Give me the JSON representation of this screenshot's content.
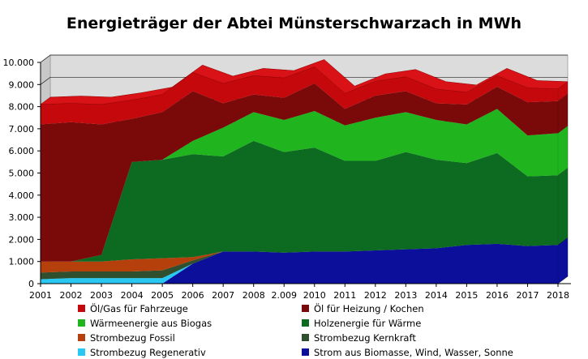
{
  "chart_data": {
    "type": "area",
    "title": "Energieträger der Abtei Münsterschwarzach in MWh",
    "categories": [
      "2001",
      "2002",
      "2003",
      "2004",
      "2005",
      "2006",
      "2007",
      "2008",
      "2.009",
      "2010",
      "2011",
      "2012",
      "2013",
      "2014",
      "2015",
      "2016",
      "2017",
      "2018"
    ],
    "yticks": [
      "0",
      "1.000",
      "2.000",
      "3.000",
      "4.000",
      "5.000",
      "6.000",
      "7.000",
      "8.000",
      "9.000",
      "10.000"
    ],
    "ylim": [
      0,
      10000
    ],
    "series": [
      {
        "name": "Strom aus Biomasse, Wind, Wasser, Sonne",
        "color": "#0b0f9a",
        "values": [
          0,
          0,
          0,
          0,
          0,
          900,
          1450,
          1450,
          1400,
          1450,
          1450,
          1500,
          1550,
          1600,
          1750,
          1800,
          1700,
          1750
        ]
      },
      {
        "name": "Strombezug Regenerativ",
        "color": "#29c8f2",
        "values": [
          200,
          250,
          250,
          250,
          250,
          0,
          0,
          0,
          0,
          0,
          0,
          0,
          0,
          0,
          0,
          0,
          0,
          0
        ]
      },
      {
        "name": "Strombezug Kernkraft",
        "color": "#2f4f2f",
        "values": [
          300,
          300,
          300,
          300,
          350,
          150,
          0,
          0,
          0,
          0,
          0,
          0,
          0,
          0,
          0,
          0,
          0,
          0
        ]
      },
      {
        "name": "Strombezug Fossil",
        "color": "#b5400c",
        "values": [
          500,
          450,
          450,
          550,
          550,
          150,
          0,
          0,
          0,
          0,
          0,
          0,
          0,
          0,
          0,
          0,
          0,
          0
        ]
      },
      {
        "name": "Holzenergie für Wärme",
        "color": "#0d6b21",
        "values": [
          0,
          0,
          300,
          4400,
          4450,
          4650,
          4300,
          5000,
          4550,
          4700,
          4100,
          4050,
          4400,
          4000,
          3700,
          4100,
          3150,
          3150
        ]
      },
      {
        "name": "Wärmeenergie aus Biogas",
        "color": "#20b51f",
        "values": [
          0,
          0,
          0,
          0,
          0,
          600,
          1300,
          1300,
          1450,
          1650,
          1600,
          1950,
          1800,
          1800,
          1750,
          2000,
          1850,
          1900
        ]
      },
      {
        "name": "Öl für Heizung / Kochen",
        "color": "#7a0a0a",
        "values": [
          6200,
          6300,
          5900,
          1950,
          2150,
          2250,
          1100,
          800,
          1000,
          1250,
          750,
          1000,
          950,
          750,
          900,
          1000,
          1500,
          1450
        ]
      },
      {
        "name": "Öl/Gas für Fahrzeuge",
        "color": "#c4080c",
        "values": [
          900,
          850,
          900,
          850,
          800,
          850,
          900,
          850,
          900,
          750,
          700,
          650,
          650,
          650,
          550,
          500,
          650,
          550
        ]
      }
    ],
    "legend": {
      "placement": "bottom",
      "columns": 2
    },
    "grid": true
  },
  "legend_order": [
    7,
    6,
    5,
    4,
    3,
    2,
    1,
    0
  ]
}
